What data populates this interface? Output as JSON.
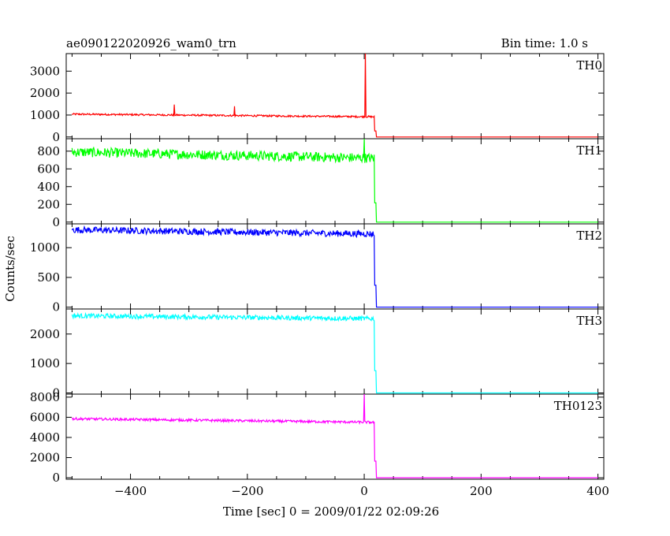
{
  "header": {
    "title": "ae090122020926_wam0_trn",
    "bin_time": "Bin time: 1.0 s"
  },
  "axes": {
    "xlabel": "Time [sec] 0 = 2009/01/22 02:09:26",
    "ylabel": "Counts/sec"
  },
  "chart_data": {
    "type": "line",
    "xlim": [
      -510,
      410
    ],
    "x_ticks": [
      -400,
      -200,
      0,
      200,
      400
    ],
    "x_tick_labels": [
      "−400",
      "−200",
      "0",
      "200",
      "400"
    ],
    "x_sample_step": 1.0,
    "grid": false,
    "panels": [
      {
        "name": "TH0",
        "color": "#ff0000",
        "ylim": [
          -80,
          3800
        ],
        "y_ticks": [
          0,
          1000,
          2000,
          3000
        ],
        "y_tick_labels": [
          "0",
          "1000",
          "2000",
          "3000"
        ],
        "level_start": 1040,
        "level_end": 920,
        "noise": 40,
        "drop_x": 20,
        "spikes": [
          {
            "x": -325,
            "y": 1480
          },
          {
            "x": -222,
            "y": 1400
          },
          {
            "x": 2,
            "y": 3800
          }
        ]
      },
      {
        "name": "TH1",
        "color": "#00ff00",
        "ylim": [
          -20,
          940
        ],
        "y_ticks": [
          0,
          200,
          400,
          600,
          800
        ],
        "y_tick_labels": [
          "0",
          "200",
          "400",
          "600",
          "800"
        ],
        "level_start": 790,
        "level_end": 720,
        "noise": 55,
        "drop_x": 20,
        "spikes": [
          {
            "x": 0,
            "y": 940
          }
        ]
      },
      {
        "name": "TH2",
        "color": "#0000ff",
        "ylim": [
          -30,
          1400
        ],
        "y_ticks": [
          0,
          500,
          1000
        ],
        "y_tick_labels": [
          "0",
          "500",
          "1000"
        ],
        "level_start": 1300,
        "level_end": 1230,
        "noise": 55,
        "drop_x": 20,
        "spikes": []
      },
      {
        "name": "TH3",
        "color": "#00ffff",
        "ylim": [
          -40,
          2850
        ],
        "y_ticks": [
          0,
          1000,
          2000
        ],
        "y_tick_labels": [
          "0",
          "1000",
          "2000"
        ],
        "level_start": 2620,
        "level_end": 2520,
        "noise": 80,
        "drop_x": 20,
        "spikes": []
      },
      {
        "name": "TH0123",
        "color": "#ff00ff",
        "ylim": [
          -150,
          8300
        ],
        "y_ticks": [
          0,
          2000,
          4000,
          6000,
          8000
        ],
        "y_tick_labels": [
          "0",
          "2000",
          "4000",
          "6000",
          "8000"
        ],
        "level_start": 5850,
        "level_end": 5500,
        "noise": 120,
        "drop_x": 20,
        "spikes": [
          {
            "x": 0,
            "y": 8300
          }
        ]
      }
    ]
  }
}
